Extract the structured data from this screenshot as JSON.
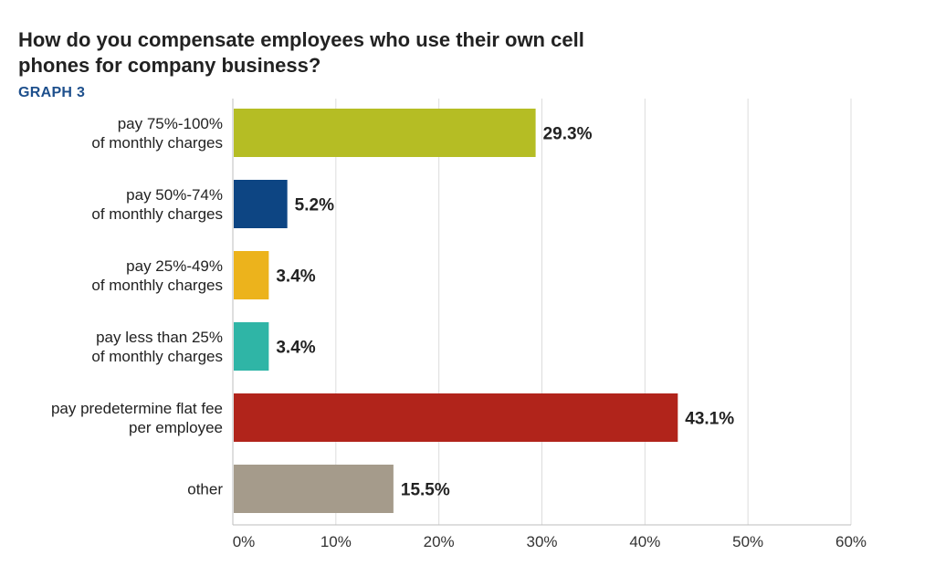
{
  "chart_data": {
    "type": "bar",
    "orientation": "horizontal",
    "title": "How do you compensate employees who use their own cell phones for company business?",
    "subtitle": "GRAPH 3",
    "categories": [
      [
        "pay 75%-100%",
        "of monthly charges"
      ],
      [
        "pay 50%-74%",
        "of monthly charges"
      ],
      [
        "pay 25%-49%",
        "of monthly charges"
      ],
      [
        "pay less than 25%",
        "of monthly charges"
      ],
      [
        "pay predetermine flat fee",
        "per employee"
      ],
      [
        "other"
      ]
    ],
    "values": [
      29.3,
      5.2,
      3.4,
      3.4,
      43.1,
      15.5
    ],
    "value_labels": [
      "29.3%",
      "5.2%",
      "3.4%",
      "3.4%",
      "43.1%",
      "15.5%"
    ],
    "colors": [
      "#b5bd24",
      "#0d4583",
      "#ecb31c",
      "#2fb5a6",
      "#b1241b",
      "#a59b8b"
    ],
    "xlim": [
      0,
      60
    ],
    "x_ticks": [
      0,
      10,
      20,
      30,
      40,
      50,
      60
    ],
    "x_tick_labels": [
      "0%",
      "10%",
      "20%",
      "30%",
      "40%",
      "50%",
      "60%"
    ],
    "grid": true,
    "legend": "none"
  }
}
